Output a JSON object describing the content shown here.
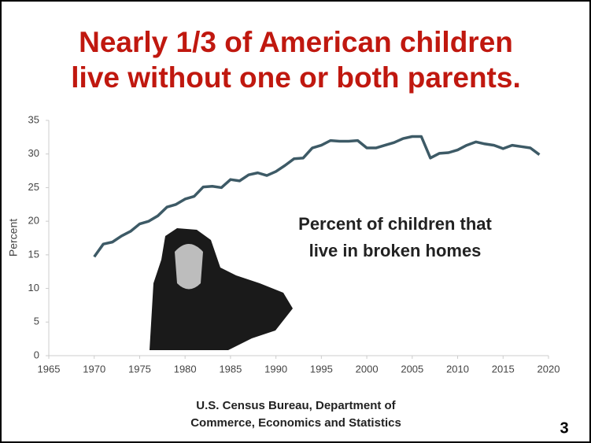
{
  "chart_data": {
    "type": "line",
    "title": [
      "Nearly 1/3 of American children",
      "live without one or both parents."
    ],
    "ylabel": "Percent",
    "annotation": [
      "Percent of children that",
      "live in broken homes"
    ],
    "source": [
      "U.S. Census Bureau, Department of",
      "Commerce, Economics and Statistics"
    ],
    "page_number": "3",
    "x": [
      1970,
      1971,
      1972,
      1973,
      1974,
      1975,
      1976,
      1977,
      1978,
      1979,
      1980,
      1981,
      1982,
      1983,
      1984,
      1985,
      1986,
      1987,
      1988,
      1989,
      1990,
      1991,
      1992,
      1993,
      1994,
      1995,
      1996,
      1997,
      1998,
      1999,
      2000,
      2001,
      2002,
      2003,
      2004,
      2005,
      2006,
      2007,
      2008,
      2009,
      2010,
      2011,
      2012,
      2013,
      2014,
      2015,
      2016,
      2017,
      2018,
      2019
    ],
    "series": [
      {
        "name": "Percent of children",
        "color": "#3d5a66",
        "values": [
          14.7,
          16.6,
          16.9,
          17.8,
          18.5,
          19.6,
          20.0,
          20.8,
          22.1,
          22.5,
          23.3,
          23.7,
          25.1,
          25.2,
          25.0,
          26.2,
          26.0,
          26.9,
          27.2,
          26.8,
          27.4,
          28.3,
          29.3,
          29.4,
          30.9,
          31.3,
          32.0,
          31.9,
          31.9,
          32.0,
          30.9,
          30.9,
          31.3,
          31.7,
          32.3,
          32.6,
          32.6,
          29.4,
          30.1,
          30.2,
          30.6,
          31.3,
          31.8,
          31.5,
          31.3,
          30.8,
          31.3,
          31.1,
          30.9,
          29.9
        ]
      }
    ],
    "xlim": [
      1965,
      2020
    ],
    "xticks": [
      1965,
      1970,
      1975,
      1980,
      1985,
      1990,
      1995,
      2000,
      2005,
      2010,
      2015,
      2020
    ],
    "ylim": [
      0,
      35
    ],
    "yticks": [
      0,
      5,
      10,
      15,
      20,
      25,
      30,
      35
    ],
    "grid": false
  }
}
